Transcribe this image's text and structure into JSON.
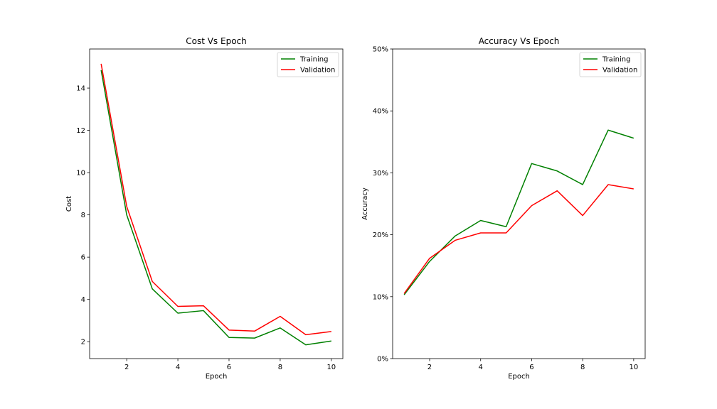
{
  "chart_data": [
    {
      "type": "line",
      "title": "Cost Vs Epoch",
      "xlabel": "Epoch",
      "ylabel": "Cost",
      "xlim": [
        0.55,
        10.45
      ],
      "ylim": [
        1.2,
        15.85
      ],
      "xticks": [
        2,
        4,
        6,
        8,
        10
      ],
      "yticks": [
        2,
        4,
        6,
        8,
        10,
        12,
        14
      ],
      "tick_suffix": "",
      "legend_position": "upper right",
      "x": [
        1,
        2,
        3,
        4,
        5,
        6,
        7,
        8,
        9,
        10
      ],
      "series": [
        {
          "name": "Training",
          "color": "#008000",
          "values": [
            14.85,
            8.0,
            4.5,
            3.35,
            3.47,
            2.2,
            2.17,
            2.65,
            1.85,
            2.03
          ]
        },
        {
          "name": "Validation",
          "color": "#ff0000",
          "values": [
            15.15,
            8.4,
            4.85,
            3.67,
            3.7,
            2.55,
            2.5,
            3.2,
            2.33,
            2.48
          ]
        }
      ]
    },
    {
      "type": "line",
      "title": "Accuracy Vs Epoch",
      "xlabel": "Epoch",
      "ylabel": "Accuracy",
      "xlim": [
        0.55,
        10.45
      ],
      "ylim": [
        0,
        50
      ],
      "xticks": [
        2,
        4,
        6,
        8,
        10
      ],
      "yticks": [
        0,
        10,
        20,
        30,
        40,
        50
      ],
      "tick_suffix": "%",
      "legend_position": "upper right",
      "x": [
        1,
        2,
        3,
        4,
        5,
        6,
        7,
        8,
        9,
        10
      ],
      "series": [
        {
          "name": "Training",
          "color": "#008000",
          "values": [
            10.3,
            15.7,
            19.8,
            22.3,
            21.3,
            31.5,
            30.3,
            28.1,
            36.9,
            35.6
          ]
        },
        {
          "name": "Validation",
          "color": "#ff0000",
          "values": [
            10.5,
            16.2,
            19.1,
            20.3,
            20.3,
            24.7,
            27.1,
            23.1,
            28.1,
            27.4
          ]
        }
      ]
    }
  ]
}
